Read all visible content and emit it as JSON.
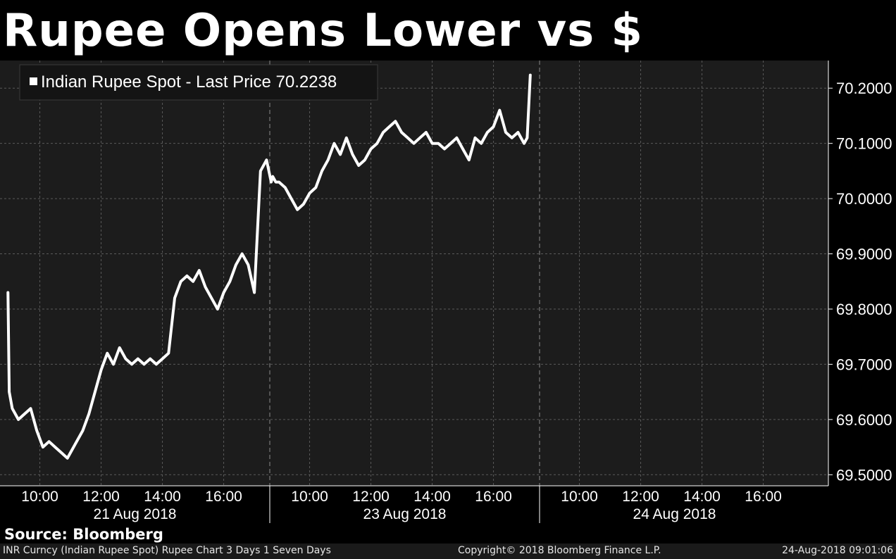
{
  "title": "Rupee Opens Lower vs $",
  "source": "Source: Bloomberg",
  "footer": {
    "left": "INR Curncy (Indian Rupee Spot) Rupee Chart 3 Days 1 Seven Days",
    "center": "Copyright© 2018 Bloomberg Finance L.P.",
    "right": "24-Aug-2018 09:01:06"
  },
  "colors": {
    "background": "#000000",
    "plot_background": "#1c1c1c",
    "line": "#ffffff",
    "grid": "#555555"
  },
  "chart_data": {
    "type": "line",
    "title": "Rupee Opens Lower vs $",
    "legend": "Indian Rupee Spot - Last Price 70.2238",
    "legend_position": "top-left",
    "ylim": [
      69.48,
      70.25
    ],
    "yticks": [
      "69.5000",
      "69.6000",
      "69.7000",
      "69.8000",
      "69.9000",
      "70.0000",
      "70.1000",
      "70.2000"
    ],
    "ytick_values": [
      69.5,
      69.6,
      69.7,
      69.8,
      69.9,
      70.0,
      70.1,
      70.2
    ],
    "y_axis_side": "right",
    "grid": true,
    "days": [
      {
        "label": "21 Aug 2018",
        "times": [
          "10:00",
          "12:00",
          "14:00",
          "16:00"
        ]
      },
      {
        "label": "23 Aug 2018",
        "times": [
          "10:00",
          "12:00",
          "14:00",
          "16:00"
        ]
      },
      {
        "label": "24 Aug 2018",
        "times": [
          "10:00",
          "12:00",
          "14:00",
          "16:00"
        ]
      }
    ],
    "series": [
      {
        "name": "Indian Rupee Spot",
        "x_hours": [
          8.96,
          9.0,
          9.1,
          9.3,
          9.5,
          9.7,
          9.9,
          10.1,
          10.3,
          10.5,
          10.7,
          10.9,
          11.0,
          11.2,
          11.4,
          11.6,
          11.8,
          12.0,
          12.2,
          12.4,
          12.6,
          12.8,
          13.0,
          13.2,
          13.4,
          13.6,
          13.8,
          14.0,
          14.2,
          14.4,
          14.6,
          14.8,
          15.0,
          15.2,
          15.4,
          15.6,
          15.8,
          16.0,
          16.2,
          16.4,
          16.6,
          16.8,
          17.0,
          17.2,
          17.4,
          17.55,
          17.6,
          17.7,
          9.0,
          9.2,
          9.4,
          9.6,
          9.8,
          10.0,
          10.2,
          10.4,
          10.6,
          10.8,
          11.0,
          11.2,
          11.4,
          11.6,
          11.8,
          12.0,
          12.2,
          12.4,
          12.6,
          12.8,
          13.0,
          13.2,
          13.4,
          13.6,
          13.8,
          14.0,
          14.2,
          14.4,
          14.6,
          14.8,
          15.0,
          15.2,
          15.4,
          15.6,
          15.8,
          16.0,
          16.2,
          16.4,
          16.6,
          16.8,
          17.0,
          17.1,
          17.2
        ],
        "values": [
          69.83,
          69.65,
          69.62,
          69.6,
          69.61,
          69.62,
          69.58,
          69.55,
          69.56,
          69.55,
          69.54,
          69.53,
          69.54,
          69.56,
          69.58,
          69.61,
          69.65,
          69.69,
          69.72,
          69.7,
          69.73,
          69.71,
          69.7,
          69.71,
          69.7,
          69.71,
          69.7,
          69.71,
          69.72,
          69.82,
          69.85,
          69.86,
          69.85,
          69.87,
          69.84,
          69.82,
          69.8,
          69.83,
          69.85,
          69.88,
          69.9,
          69.88,
          69.83,
          70.05,
          70.07,
          70.03,
          70.04,
          70.03,
          70.03,
          70.02,
          70.0,
          69.98,
          69.99,
          70.01,
          70.02,
          70.05,
          70.07,
          70.1,
          70.08,
          70.11,
          70.08,
          70.06,
          70.07,
          70.09,
          70.1,
          70.12,
          70.13,
          70.14,
          70.12,
          70.11,
          70.1,
          70.11,
          70.12,
          70.1,
          70.1,
          70.09,
          70.1,
          70.11,
          70.09,
          70.07,
          70.11,
          70.1,
          70.12,
          70.13,
          70.16,
          70.12,
          70.11,
          70.12,
          70.1,
          70.11,
          70.2238
        ]
      }
    ]
  }
}
